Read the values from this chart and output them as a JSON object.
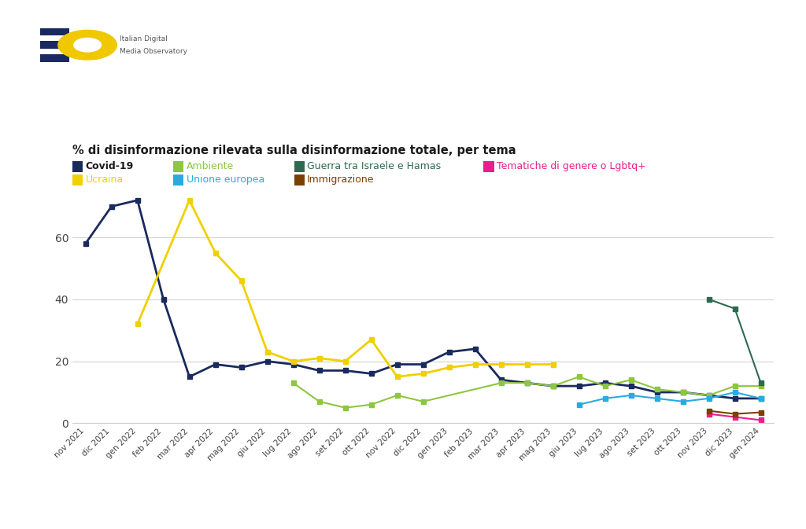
{
  "title": "% di disinformazione rilevata sulla disinformazione totale, per tema",
  "x_labels": [
    "nov 2021",
    "dic 2021",
    "gen 2022",
    "feb 2022",
    "mar 2022",
    "apr 2022",
    "mag 2022",
    "giu 2022",
    "lug 2022",
    "ago 2022",
    "set 2022",
    "ott 2022",
    "nov 2022",
    "dic 2022",
    "gen 2023",
    "feb 2023",
    "mar 2023",
    "apr 2023",
    "mag 2023",
    "giu 2023",
    "lug 2023",
    "ago 2023",
    "set 2023",
    "ott 2023",
    "nov 2023",
    "dic 2023",
    "gen 2024"
  ],
  "covid_vals": [
    58.0,
    70.0,
    72.0,
    40.0,
    15.0,
    19.0,
    18.0,
    20.0,
    19.0,
    17.0,
    17.0,
    16.0,
    19.0,
    19.0,
    23.0,
    24.0,
    14.0,
    13.0,
    12.0,
    12.0,
    13.0,
    12.0,
    10.0,
    10.0,
    9.0,
    8.0,
    8.0
  ],
  "ucraina_vals": [
    null,
    null,
    32.0,
    null,
    72.0,
    55.0,
    46.0,
    23.0,
    20.0,
    21.0,
    20.0,
    27.0,
    15.0,
    16.0,
    18.0,
    19.0,
    19.0,
    19.0,
    19.0,
    null,
    null,
    null,
    null,
    null,
    null,
    null,
    null
  ],
  "ambiente_vals": [
    null,
    null,
    null,
    null,
    null,
    null,
    null,
    null,
    13.0,
    7.0,
    5.0,
    6.0,
    9.0,
    7.0,
    null,
    null,
    13.0,
    13.0,
    12.0,
    15.0,
    12.0,
    14.0,
    11.0,
    10.0,
    9.0,
    12.0,
    12.0
  ],
  "guerra_vals": [
    null,
    null,
    null,
    null,
    null,
    null,
    null,
    null,
    null,
    null,
    null,
    null,
    null,
    null,
    null,
    null,
    null,
    null,
    null,
    null,
    null,
    null,
    null,
    null,
    40.0,
    37.0,
    13.0
  ],
  "tematiche_vals": [
    null,
    null,
    null,
    null,
    null,
    null,
    null,
    null,
    null,
    null,
    null,
    null,
    null,
    null,
    null,
    null,
    null,
    null,
    null,
    null,
    null,
    null,
    null,
    null,
    3.0,
    2.0,
    1.0
  ],
  "unione_vals": [
    null,
    null,
    null,
    null,
    null,
    null,
    null,
    null,
    null,
    null,
    null,
    null,
    null,
    null,
    null,
    null,
    null,
    null,
    null,
    6.0,
    8.0,
    9.0,
    8.0,
    7.0,
    8.0,
    10.0,
    8.0
  ],
  "immigrazione_vals": [
    null,
    null,
    null,
    null,
    null,
    null,
    null,
    null,
    null,
    null,
    null,
    null,
    null,
    null,
    null,
    null,
    null,
    null,
    null,
    null,
    null,
    null,
    null,
    null,
    4.0,
    3.0,
    3.5
  ],
  "covid_color": "#1a2a5e",
  "ucraina_color": "#f0d000",
  "ambiente_color": "#8dc63f",
  "guerra_color": "#2d6a4f",
  "tematiche_color": "#e91e8c",
  "unione_color": "#29abe2",
  "immigrazione_color": "#7B3F00",
  "ylim": [
    0.0,
    82.0
  ],
  "yticks": [
    0.0,
    20.0,
    40.0,
    60.0
  ],
  "background_color": "#ffffff",
  "grid_color": "#cccccc"
}
